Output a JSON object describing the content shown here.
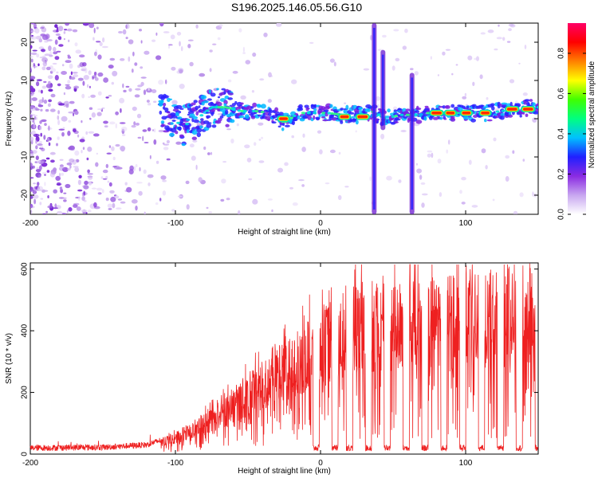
{
  "title": "S196.2025.146.05.56.G10",
  "chart_data": [
    {
      "type": "heatmap",
      "xlabel": "Height of straight line (km)",
      "ylabel": "Frequency (Hz)",
      "xlim": [
        -200,
        150
      ],
      "ylim": [
        -25,
        25
      ],
      "xticks": [
        -200,
        -100,
        0,
        100
      ],
      "yticks": [
        -20,
        -10,
        0,
        10,
        20
      ],
      "colorbar": {
        "label": "Normalized spectral amplitude",
        "range": [
          0,
          0.95
        ],
        "ticks": [
          0.0,
          0.2,
          0.4,
          0.6,
          0.8
        ],
        "tick_labels": [
          "0.0",
          "0.2",
          "0.4",
          "0.6",
          "0.8"
        ],
        "colors": [
          "#ffffff",
          "#c8a6f0",
          "#8a2be2",
          "#2020ff",
          "#00c0ff",
          "#00ff80",
          "#40ff00",
          "#ffff00",
          "#ff8000",
          "#ff0000",
          "#ff0066"
        ]
      },
      "ridge": {
        "description_points_x": [
          -105,
          -95,
          -85,
          -75,
          -65,
          -55,
          -45,
          -35,
          -25,
          -15,
          -5,
          5,
          15,
          25,
          35,
          45,
          55,
          65,
          75,
          85,
          95,
          105,
          115,
          125,
          135,
          145
        ],
        "description_points_y": [
          1,
          -2,
          0,
          3,
          3,
          2,
          2,
          1.5,
          -1,
          1.5,
          1.5,
          1.5,
          1,
          1,
          2,
          0,
          1,
          1,
          1.5,
          1.5,
          1.5,
          1.5,
          1.5,
          2,
          2.5,
          3
        ]
      },
      "strong_segments": [
        {
          "x": [
            -29,
            -22
          ],
          "y": 0
        },
        {
          "x": [
            13,
            20
          ],
          "y": 0.5
        },
        {
          "x": [
            25,
            33
          ],
          "y": 0.5
        },
        {
          "x": [
            76,
            84
          ],
          "y": 1.5
        },
        {
          "x": [
            86,
            93
          ],
          "y": 1.5
        },
        {
          "x": [
            97,
            104
          ],
          "y": 1.5
        },
        {
          "x": [
            110,
            117
          ],
          "y": 1.5
        },
        {
          "x": [
            128,
            136
          ],
          "y": 2.5
        },
        {
          "x": [
            139,
            147
          ],
          "y": 2.5
        }
      ],
      "vertical_features": [
        {
          "x": 37,
          "y": [
            -25,
            25
          ]
        },
        {
          "x": 43,
          "y": [
            -3,
            18
          ]
        },
        {
          "x": 63,
          "y": [
            -25,
            12
          ]
        }
      ]
    },
    {
      "type": "line",
      "xlabel": "Height of straight line (km)",
      "ylabel": "SNR (10 * v/v)",
      "xlim": [
        -200,
        150
      ],
      "ylim": [
        0,
        620
      ],
      "xticks": [
        -200,
        -100,
        0,
        100
      ],
      "yticks": [
        0,
        200,
        400,
        600
      ],
      "series": [
        {
          "color": "#ff0000",
          "envelope_x": [
            -200,
            -150,
            -120,
            -100,
            -80,
            -60,
            -40,
            -20,
            0,
            20,
            40,
            60,
            80,
            100,
            120,
            150
          ],
          "envelope_y": [
            20,
            22,
            30,
            60,
            110,
            180,
            260,
            320,
            400,
            450,
            470,
            480,
            480,
            490,
            500,
            520
          ],
          "dropout_x": [
            -3,
            10,
            20,
            33,
            46,
            59,
            72,
            85,
            98,
            111,
            124,
            137,
            150
          ],
          "dropout_y": 20
        }
      ]
    }
  ]
}
